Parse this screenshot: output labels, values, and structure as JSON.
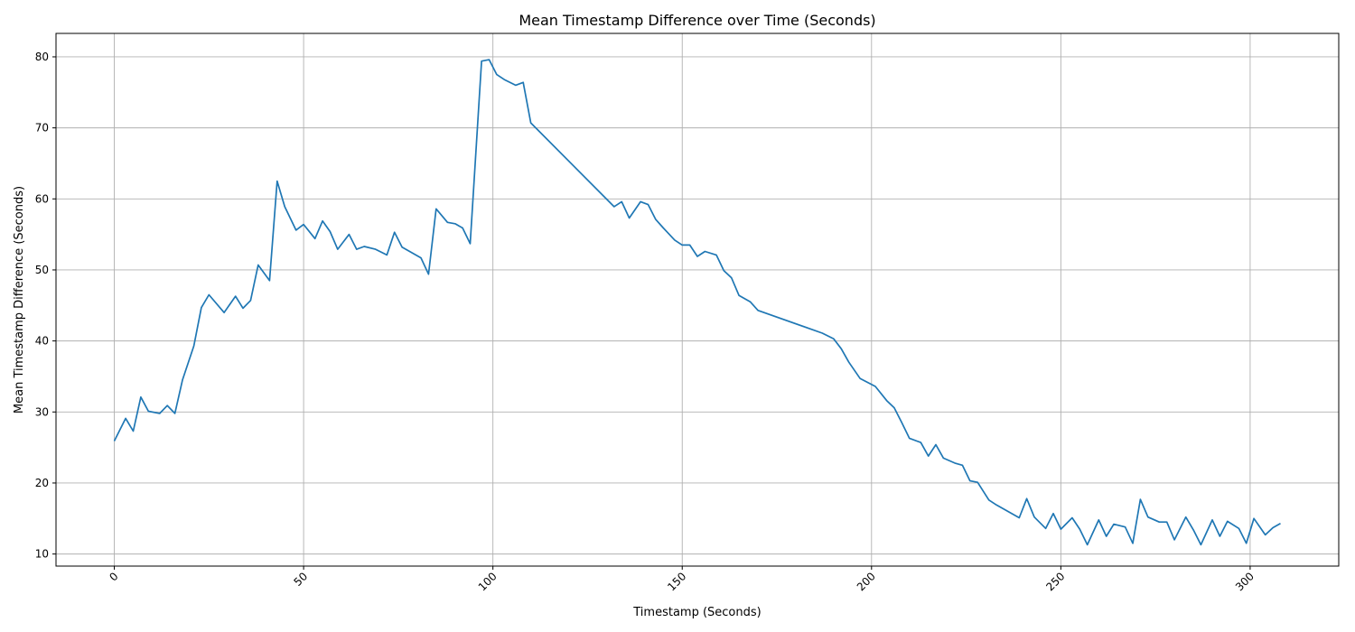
{
  "chart_data": {
    "type": "line",
    "title": "Mean Timestamp Difference over Time (Seconds)",
    "xlabel": "Timestamp (Seconds)",
    "ylabel": "Mean Timestamp Difference (Seconds)",
    "xlim": [
      -15.4,
      323.4
    ],
    "ylim": [
      8.3,
      83.3
    ],
    "xticks": [
      0,
      50,
      100,
      150,
      200,
      250,
      300
    ],
    "yticks": [
      10,
      20,
      30,
      40,
      50,
      60,
      70,
      80
    ],
    "grid": true,
    "line_color": "#1f77b4",
    "series": [
      {
        "x": [
          0,
          3,
          5,
          7,
          9,
          12,
          14,
          16,
          18,
          21,
          23,
          25,
          29,
          32,
          34,
          36,
          38,
          41,
          43,
          45,
          48,
          50,
          53,
          55,
          57,
          59,
          62,
          64,
          66,
          69,
          72,
          74,
          76,
          81,
          83,
          85,
          88,
          90,
          92,
          94,
          97,
          99,
          101,
          103,
          106,
          108,
          110,
          132,
          134,
          136,
          139,
          141,
          143,
          145,
          148,
          150,
          152,
          154,
          156,
          159,
          161,
          163,
          165,
          168,
          170,
          187,
          190,
          192,
          194,
          197,
          201,
          204,
          206,
          208,
          210,
          213,
          215,
          217,
          219,
          222,
          224,
          226,
          228,
          231,
          233,
          236,
          239,
          241,
          243,
          246,
          248,
          250,
          253,
          255,
          257,
          260,
          262,
          264,
          267,
          269,
          271,
          273,
          276,
          278,
          280,
          283,
          285,
          287,
          290,
          292,
          294,
          297,
          299,
          301,
          304,
          306,
          308
        ],
        "values": [
          25.9,
          29.1,
          27.3,
          32.1,
          30.1,
          29.8,
          30.9,
          29.8,
          34.5,
          39.3,
          44.7,
          46.5,
          44.0,
          46.3,
          44.6,
          45.7,
          50.7,
          48.5,
          62.5,
          58.9,
          55.6,
          56.4,
          54.4,
          56.9,
          55.4,
          52.9,
          55.0,
          52.9,
          53.3,
          52.9,
          52.1,
          55.3,
          53.2,
          51.7,
          49.4,
          58.6,
          56.7,
          56.5,
          55.9,
          53.7,
          79.4,
          79.6,
          77.5,
          76.8,
          76.0,
          76.4,
          70.7,
          58.9,
          59.6,
          57.3,
          59.6,
          59.2,
          57.1,
          55.9,
          54.2,
          53.5,
          53.5,
          51.9,
          52.6,
          52.1,
          49.9,
          48.9,
          46.4,
          45.5,
          44.3,
          41.1,
          40.3,
          38.9,
          37.0,
          34.7,
          33.6,
          31.6,
          30.6,
          28.5,
          26.3,
          25.7,
          23.8,
          25.4,
          23.5,
          22.8,
          22.5,
          20.3,
          20.1,
          17.6,
          16.9,
          16.0,
          15.1,
          17.8,
          15.2,
          13.6,
          15.7,
          13.5,
          15.1,
          13.5,
          11.3,
          14.8,
          12.5,
          14.2,
          13.8,
          11.5,
          17.7,
          15.2,
          14.5,
          14.5,
          12.0,
          15.2,
          13.4,
          11.3,
          14.8,
          12.5,
          14.6,
          13.6,
          11.5,
          15.0,
          12.7,
          13.7,
          14.3
        ]
      }
    ]
  }
}
